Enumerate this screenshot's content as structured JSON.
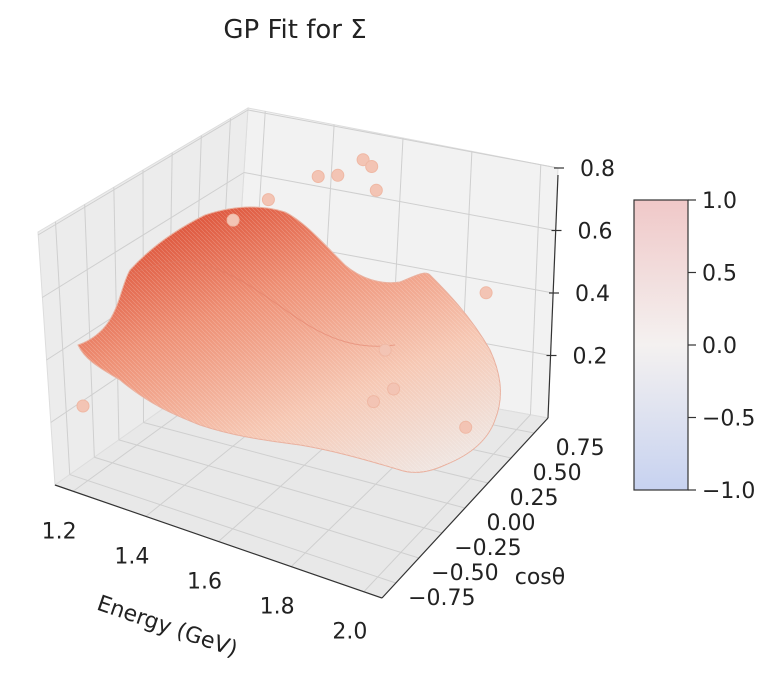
{
  "chart_data": {
    "type": "surface3d",
    "title": "GP Fit for Σ",
    "xlabel": "Energy (GeV)",
    "ylabel": "cosθ",
    "zlabel": "",
    "xlim": [
      1.15,
      2.05
    ],
    "ylim": [
      -0.9,
      0.9
    ],
    "zlim": [
      0.0,
      0.8
    ],
    "xticks": [
      "1.2",
      "1.4",
      "1.6",
      "1.8",
      "2.0"
    ],
    "yticks": [
      "−0.75",
      "−0.50",
      "−0.25",
      "0.00",
      "0.25",
      "0.50",
      "0.75"
    ],
    "zticks": [
      "0.2",
      "0.4",
      "0.6",
      "0.8"
    ],
    "colormap": "coolwarm",
    "colorbar": {
      "ticks": [
        "1.0",
        "0.5",
        "0.0",
        "−0.5",
        "−1.0"
      ],
      "range": [
        -1.0,
        1.0
      ],
      "low_color": "#c7d2f0",
      "mid_color": "#f4f1f0",
      "high_color": "#f0c8c8"
    },
    "surface_color_high": "#d9452c",
    "surface_color_low": "#f6e4dc",
    "grid": true,
    "data_points": [
      {
        "x": 1.2,
        "y": -0.8,
        "z": 0.25
      },
      {
        "x": 1.25,
        "y": 0.55,
        "z": 0.55
      },
      {
        "x": 1.35,
        "y": 0.55,
        "z": 0.64
      },
      {
        "x": 1.45,
        "y": 0.7,
        "z": 0.7
      },
      {
        "x": 1.5,
        "y": 0.72,
        "z": 0.71
      },
      {
        "x": 1.55,
        "y": 0.8,
        "z": 0.75
      },
      {
        "x": 1.58,
        "y": 0.78,
        "z": 0.74
      },
      {
        "x": 1.62,
        "y": 0.68,
        "z": 0.7
      },
      {
        "x": 1.8,
        "y": 0.1,
        "z": 0.4
      },
      {
        "x": 1.82,
        "y": -0.1,
        "z": 0.3
      },
      {
        "x": 1.85,
        "y": 0.0,
        "z": 0.32
      },
      {
        "x": 1.9,
        "y": 0.8,
        "z": 0.4
      },
      {
        "x": 2.0,
        "y": 0.2,
        "z": 0.18
      }
    ]
  }
}
